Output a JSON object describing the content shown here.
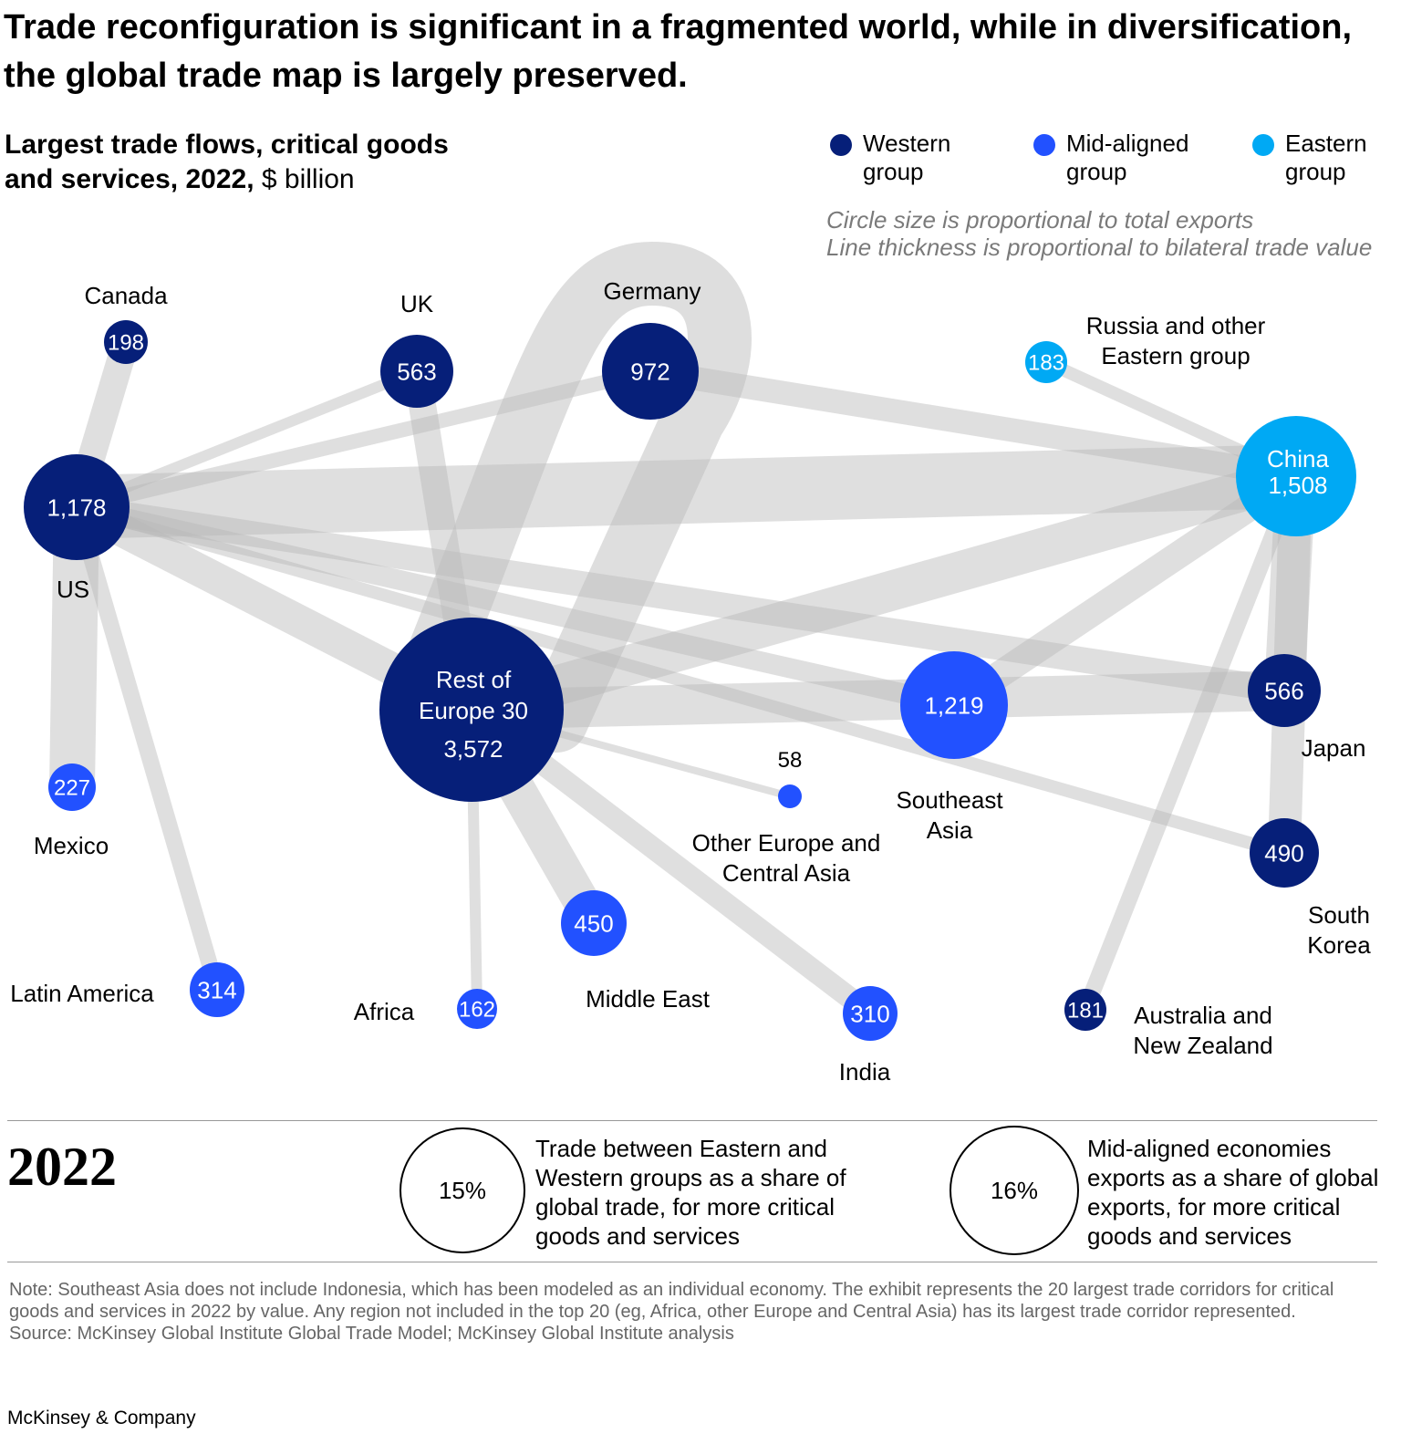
{
  "title": "Trade reconfiguration is significant in a fragmented world, while in diversification, the global trade map is largely preserved.",
  "subtitle_bold": "Largest trade flows, critical goods and services, 2022,",
  "subtitle_unit": " $ billion",
  "legend": [
    {
      "label": "Western group",
      "color": "#061f79"
    },
    {
      "label": "Mid-aligned group",
      "color": "#2251ff"
    },
    {
      "label": "Eastern group",
      "color": "#00a9f4"
    }
  ],
  "notes": [
    "Circle size is proportional to total exports",
    "Line thickness is proportional to bilateral trade value"
  ],
  "nodes": [
    {
      "id": "canada",
      "label": "Canada",
      "value": "198",
      "group": "Western"
    },
    {
      "id": "uk",
      "label": "UK",
      "value": "563",
      "group": "Western"
    },
    {
      "id": "germany",
      "label": "Germany",
      "value": "972",
      "group": "Western"
    },
    {
      "id": "russia",
      "label": "Russia and other Eastern group",
      "value": "183",
      "group": "Eastern"
    },
    {
      "id": "china",
      "label": "China",
      "value": "1,508",
      "group": "Eastern"
    },
    {
      "id": "us",
      "label": "US",
      "value": "1,178",
      "group": "Western"
    },
    {
      "id": "roe",
      "label": "Rest of Europe 30",
      "value": "3,572",
      "group": "Western"
    },
    {
      "id": "sea",
      "label": "Southeast Asia",
      "value": "1,219",
      "group": "Mid-aligned"
    },
    {
      "id": "japan",
      "label": "Japan",
      "value": "566",
      "group": "Western"
    },
    {
      "id": "korea",
      "label": "South Korea",
      "value": "490",
      "group": "Western"
    },
    {
      "id": "mexico",
      "label": "Mexico",
      "value": "227",
      "group": "Mid-aligned"
    },
    {
      "id": "latam",
      "label": "Latin America",
      "value": "314",
      "group": "Mid-aligned"
    },
    {
      "id": "africa",
      "label": "Africa",
      "value": "162",
      "group": "Mid-aligned"
    },
    {
      "id": "me",
      "label": "Middle East",
      "value": "450",
      "group": "Mid-aligned"
    },
    {
      "id": "india",
      "label": "India",
      "value": "310",
      "group": "Mid-aligned"
    },
    {
      "id": "oeca",
      "label": "Other Europe and Central Asia",
      "value": "58",
      "group": "Mid-aligned"
    },
    {
      "id": "anz",
      "label": "Australia and New Zealand",
      "value": "181",
      "group": "Western"
    }
  ],
  "edges": [
    [
      "us",
      "canada"
    ],
    [
      "us",
      "uk"
    ],
    [
      "us",
      "germany"
    ],
    [
      "us",
      "china"
    ],
    [
      "us",
      "mexico"
    ],
    [
      "us",
      "latam"
    ],
    [
      "us",
      "roe"
    ],
    [
      "us",
      "japan"
    ],
    [
      "us",
      "sea"
    ],
    [
      "us",
      "korea"
    ],
    [
      "uk",
      "roe"
    ],
    [
      "germany",
      "china"
    ],
    [
      "germany",
      "roe"
    ],
    [
      "russia",
      "china"
    ],
    [
      "china",
      "roe"
    ],
    [
      "china",
      "sea"
    ],
    [
      "china",
      "japan"
    ],
    [
      "china",
      "korea"
    ],
    [
      "china",
      "anz"
    ],
    [
      "roe",
      "japan"
    ],
    [
      "roe",
      "me"
    ],
    [
      "roe",
      "africa"
    ],
    [
      "roe",
      "india"
    ],
    [
      "roe",
      "oeca"
    ]
  ],
  "year": "2022",
  "stats": [
    {
      "value": "15%",
      "text": "Trade between Eastern and Western groups as a share of global trade, for more critical goods and services"
    },
    {
      "value": "16%",
      "text": "Mid-aligned economies exports as a share of global exports, for more critical goods and services"
    }
  ],
  "footnote": "Note: Southeast Asia does not include Indonesia, which has been modeled as an individual economy. The exhibit represents the 20 largest trade corridors for critical goods and services in 2022 by value. Any region not included in the top 20 (eg, Africa, other Europe and Central Asia) has its largest trade corridor represented.",
  "source": "Source: McKinsey Global Institute Global Trade Model; McKinsey Global Institute analysis",
  "brand": "McKinsey & Company"
}
